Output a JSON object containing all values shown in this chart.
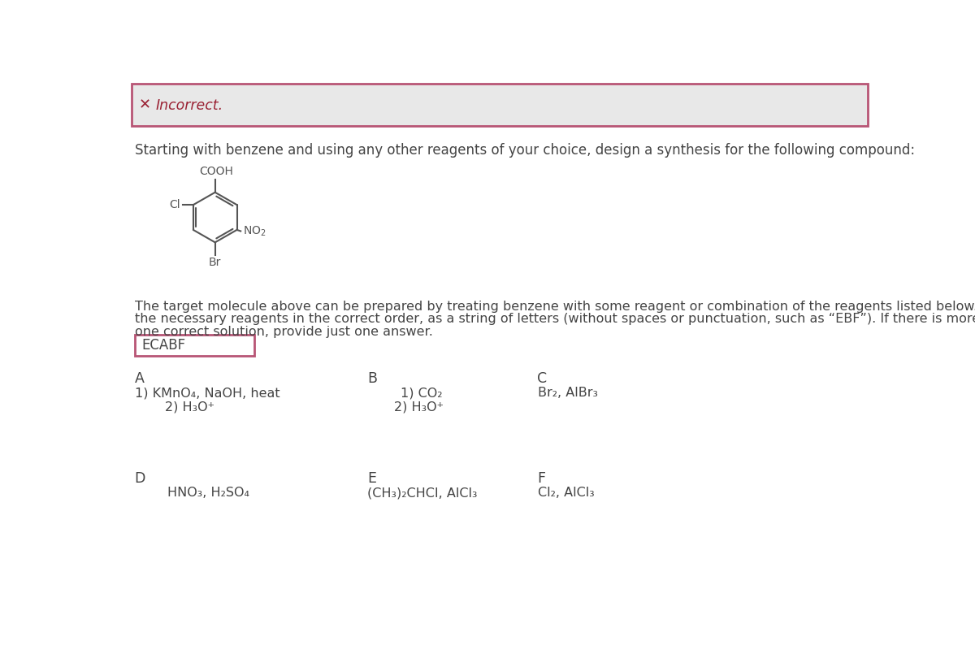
{
  "bg_color": "#e8e8e8",
  "white": "#ffffff",
  "border_color": "#b85575",
  "incorrect_color": "#9b2335",
  "incorrect_text": "Incorrect.",
  "question_text": "Starting with benzene and using any other reagents of your choice, design a synthesis for the following compound:",
  "answer_text": "ECABF",
  "paragraph_line1": "The target molecule above can be prepared by treating benzene with some reagent or combination of the reagents listed below. Give",
  "paragraph_line2": "the necessary reagents in the correct order, as a string of letters (without spaces or punctuation, such as “EBF”). If there is more than",
  "paragraph_line3": "one correct solution, provide just one answer.",
  "text_color": "#444444",
  "reagents": {
    "A_label": "A",
    "A_line1": "1) KMnO₄, NaOH, heat",
    "A_line2": "2) H₃O⁺",
    "B_label": "B",
    "B_line1": "1) CO₂",
    "B_line2": "2) H₃O⁺",
    "C_label": "C",
    "C_line1": "Br₂, AlBr₃",
    "D_label": "D",
    "D_line1": "HNO₃, H₂SO₄",
    "E_label": "E",
    "E_line1": "(CH₃)₂CHCI, AlCl₃",
    "F_label": "F",
    "F_line1": "Cl₂, AlCl₃"
  }
}
